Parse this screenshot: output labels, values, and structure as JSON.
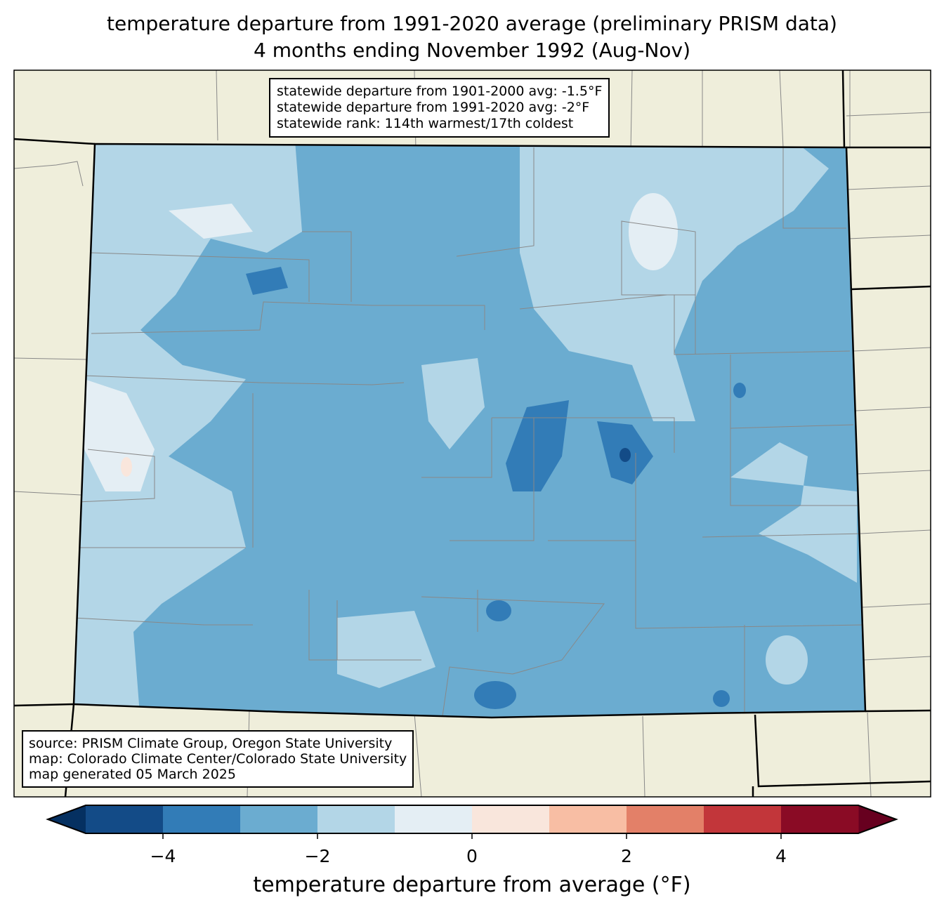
{
  "title": {
    "line1": "temperature departure from 1991-2020 average (preliminary PRISM data)",
    "line2": "4 months ending November 1992 (Aug-Nov)"
  },
  "stats": {
    "line1": "statewide departure from 1901-2000 avg: -1.5°F",
    "line2": "statewide departure from 1991-2020 avg: -2°F",
    "line3": "statewide rank: 114th warmest/17th coldest"
  },
  "source": {
    "line1": "source: PRISM Climate Group, Oregon State University",
    "line2": "map: Colorado Climate Center/Colorado State University",
    "line3": "map generated 05 March 2025"
  },
  "colors": {
    "land": "#efeedb",
    "under": "#053061",
    "over": "#67001f"
  },
  "colorbar": {
    "label": "temperature departure from average (°F)",
    "bounds": [
      -5,
      -4,
      -3,
      -2,
      -1,
      0,
      1,
      2,
      3,
      4,
      5
    ],
    "colors": [
      "#134b87",
      "#327cb7",
      "#6bacd0",
      "#b3d6e7",
      "#e4eef4",
      "#f9e6dc",
      "#f8bea4",
      "#e38068",
      "#c2363a",
      "#8a0b25"
    ],
    "ticks": [
      -4,
      -2,
      0,
      2,
      4
    ],
    "tick_labels": [
      "−4",
      "−2",
      "0",
      "2",
      "4"
    ]
  }
}
